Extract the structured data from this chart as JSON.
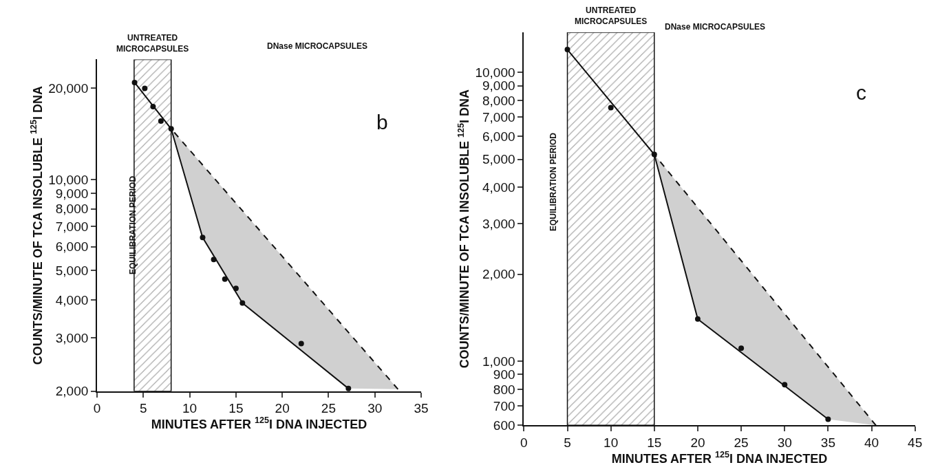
{
  "chart_data": [
    {
      "type": "scatter",
      "xlabel": "MINUTES AFTER $^{125}$I DNA INJECTED",
      "ylabel": "COUNTS/MINUTE OF TCA INSOLUBLE $^{125}$I DNA",
      "log": "y",
      "xlim": [
        0,
        35
      ],
      "xticks": [
        0,
        5,
        10,
        15,
        20,
        25,
        30,
        35
      ],
      "ylim": [
        2000,
        24900
      ],
      "yticks": [
        {
          "value": 2000,
          "label": "2,000"
        },
        {
          "value": 3000,
          "label": "3,000"
        },
        {
          "value": 4000,
          "label": "4,000"
        },
        {
          "value": 5000,
          "label": "5,000"
        },
        {
          "value": 6000,
          "label": "6,000"
        },
        {
          "value": 7000,
          "label": "7,000"
        },
        {
          "value": 8000,
          "label": "8,000"
        },
        {
          "value": 9000,
          "label": "9,000"
        },
        {
          "value": 10000,
          "label": "10,000"
        },
        {
          "value": 20000,
          "label": "20,000"
        }
      ],
      "series": [
        {
          "color": "#111111",
          "marker": "circle",
          "x": [
            4.05,
            5.15,
            6.05,
            6.9,
            8.0,
            11.4,
            12.6,
            13.8,
            15.0,
            15.7,
            22.05,
            27.15
          ],
          "values": [
            20900,
            20000,
            17400,
            15600,
            14700,
            6430,
            5440,
            4690,
            4370,
            3910,
            2870,
            2040
          ]
        },
        {
          "type": "line",
          "color": "#111111",
          "marker": "none",
          "line_style": "solid",
          "x": [
            4.05,
            8.0,
            11.4,
            15.7,
            27.15
          ],
          "values": [
            20900,
            14700,
            6430,
            3910,
            2040
          ]
        },
        {
          "type": "line",
          "color": "#111111",
          "marker": "none",
          "line_style": "dashed",
          "x": [
            8.0,
            32.5
          ],
          "values": [
            14700,
            2030
          ]
        }
      ],
      "bands": [
        {
          "axis": "x",
          "from": 4,
          "to": 8,
          "label": "UNTREATED MICROCAPSULES",
          "color": "#555555"
        }
      ],
      "annotations": [
        "DNase MICROCAPSULES",
        "b",
        "EQUILIBRATION PERIOD"
      ]
    },
    {
      "type": "scatter",
      "xlabel": "MINUTES AFTER $^{125}$I DNA INJECTED",
      "ylabel": "COUNTS/MINUTE OF TCA INSOLUBLE $^{125}$I DNA",
      "log": "y",
      "xlim": [
        0,
        45
      ],
      "xticks": [
        0,
        5,
        10,
        15,
        20,
        25,
        30,
        35,
        40,
        45
      ],
      "ylim": [
        600,
        13770
      ],
      "yticks": [
        600,
        700,
        800,
        900,
        {
          "value": 1000,
          "label": "1,000"
        },
        {
          "value": 2000,
          "label": "2,000"
        },
        {
          "value": 3000,
          "label": "3,000"
        },
        {
          "value": 4000,
          "label": "4,000"
        },
        {
          "value": 5000,
          "label": "5,000"
        },
        {
          "value": 6000,
          "label": "6,000"
        },
        {
          "value": 7000,
          "label": "7,000"
        },
        {
          "value": 8000,
          "label": "8,000"
        },
        {
          "value": 9000,
          "label": "9,000"
        },
        {
          "value": 10000,
          "label": "10,000"
        }
      ],
      "series": [
        {
          "color": "#111111",
          "marker": "circle",
          "x": [
            5,
            10,
            15,
            20,
            25,
            30,
            35
          ],
          "values": [
            12000,
            7550,
            5200,
            1400,
            1110,
            830,
            630
          ]
        },
        {
          "type": "line",
          "color": "#111111",
          "marker": "none",
          "line_style": "solid",
          "x": [
            5,
            15,
            20,
            35
          ],
          "values": [
            12000,
            5200,
            1400,
            630
          ]
        },
        {
          "type": "line",
          "color": "#111111",
          "marker": "none",
          "line_style": "dashed",
          "x": [
            15,
            40.5
          ],
          "values": [
            5200,
            600
          ]
        }
      ],
      "bands": [
        {
          "axis": "x",
          "from": 5,
          "to": 15,
          "label": "UNTREATED MICROCAPSULES",
          "color": "#555555"
        }
      ],
      "annotations": [
        "DNase MICROCAPSULES",
        "c",
        "EQUILIBRATION PERIOD"
      ]
    }
  ]
}
